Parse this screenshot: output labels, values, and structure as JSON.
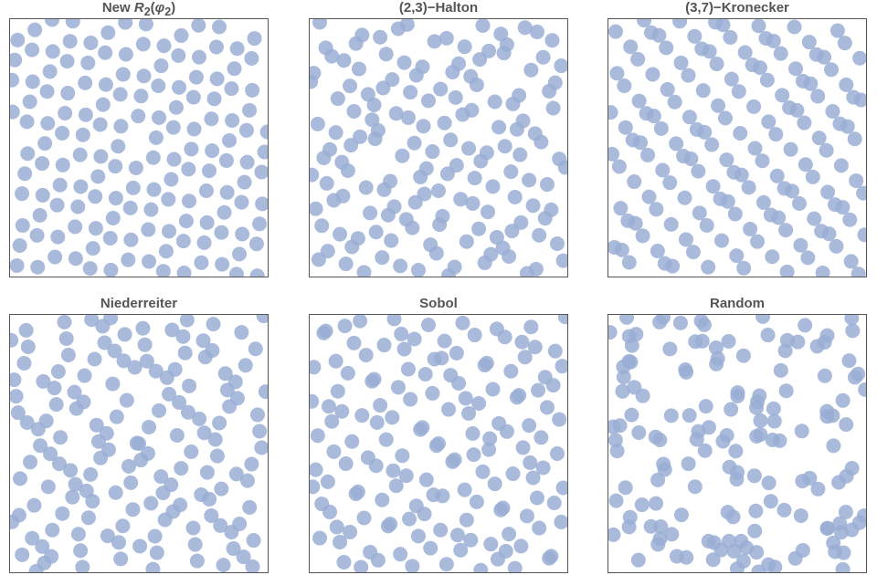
{
  "colors": {
    "point": "#9aaed5",
    "frame": "#555555",
    "title": "#555555"
  },
  "chart_data": [
    {
      "type": "scatter",
      "title_parts": [
        "New ",
        "R",
        "2",
        "(",
        "φ",
        "2",
        ")"
      ],
      "xlim": [
        0,
        1
      ],
      "ylim": [
        0,
        1
      ],
      "grid": false,
      "legend": "none",
      "generator": {
        "kind": "r2",
        "n": 150
      }
    },
    {
      "type": "scatter",
      "title_parts": [
        "(2,3)−Halton"
      ],
      "xlim": [
        0,
        1
      ],
      "ylim": [
        0,
        1
      ],
      "grid": false,
      "legend": "none",
      "generator": {
        "kind": "halton",
        "bases": [
          2,
          3
        ],
        "n": 150
      }
    },
    {
      "type": "scatter",
      "title_parts": [
        "(3,7)−Kronecker"
      ],
      "xlim": [
        0,
        1
      ],
      "ylim": [
        0,
        1
      ],
      "grid": false,
      "legend": "none",
      "generator": {
        "kind": "kronecker",
        "roots": [
          3,
          7
        ],
        "n": 150
      }
    },
    {
      "type": "scatter",
      "title_parts": [
        "Niederreiter"
      ],
      "xlim": [
        0,
        1
      ],
      "ylim": [
        0,
        1
      ],
      "grid": false,
      "legend": "none",
      "generator": {
        "kind": "niederreiter",
        "n": 150
      }
    },
    {
      "type": "scatter",
      "title_parts": [
        "Sobol"
      ],
      "xlim": [
        0,
        1
      ],
      "ylim": [
        0,
        1
      ],
      "grid": false,
      "legend": "none",
      "generator": {
        "kind": "sobol",
        "n": 150
      }
    },
    {
      "type": "scatter",
      "title_parts": [
        "Random"
      ],
      "xlim": [
        0,
        1
      ],
      "ylim": [
        0,
        1
      ],
      "grid": false,
      "legend": "none",
      "generator": {
        "kind": "random",
        "n": 150
      }
    }
  ]
}
